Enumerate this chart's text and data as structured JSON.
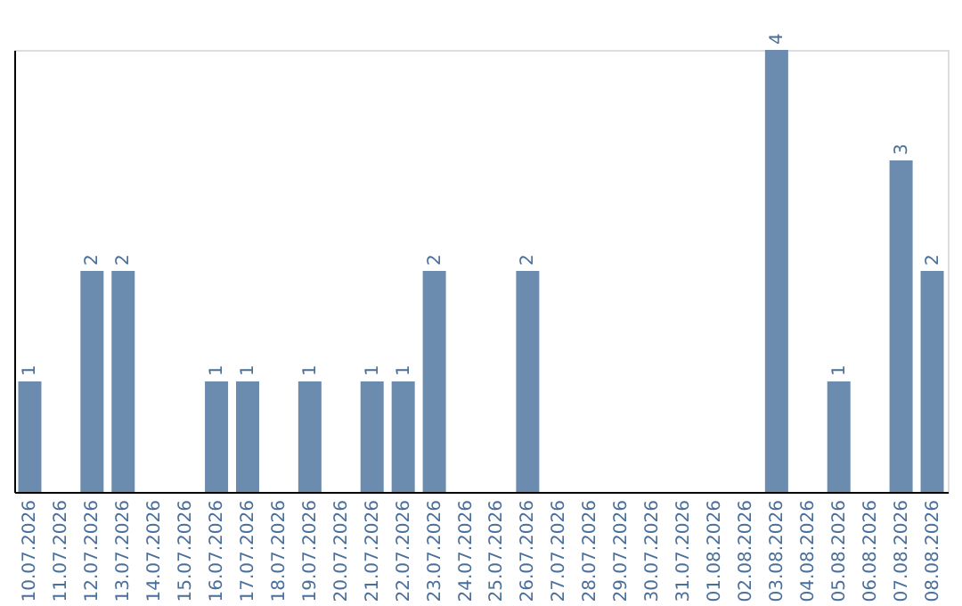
{
  "chart_data": {
    "type": "bar",
    "categories": [
      "10.07.2026",
      "11.07.2026",
      "12.07.2026",
      "13.07.2026",
      "14.07.2026",
      "15.07.2026",
      "16.07.2026",
      "17.07.2026",
      "18.07.2026",
      "19.07.2026",
      "20.07.2026",
      "21.07.2026",
      "22.07.2026",
      "23.07.2026",
      "24.07.2026",
      "25.07.2026",
      "26.07.2026",
      "27.07.2026",
      "28.07.2026",
      "29.07.2026",
      "30.07.2026",
      "31.07.2026",
      "01.08.2026",
      "02.08.2026",
      "03.08.2026",
      "04.08.2026",
      "05.08.2026",
      "06.08.2026",
      "07.08.2026",
      "08.08.2026"
    ],
    "values": [
      1,
      0,
      2,
      2,
      0,
      0,
      1,
      1,
      0,
      1,
      0,
      1,
      1,
      2,
      0,
      0,
      2,
      0,
      0,
      0,
      0,
      0,
      0,
      0,
      4,
      0,
      1,
      0,
      3,
      2
    ],
    "value_labels": [
      "1",
      null,
      "2",
      "2",
      null,
      null,
      "1",
      "1",
      null,
      "1",
      null,
      "1",
      "1",
      "2",
      null,
      null,
      "2",
      null,
      null,
      null,
      null,
      null,
      null,
      null,
      "4",
      null,
      "1",
      null,
      "3",
      "2"
    ],
    "color": "#6b8cae",
    "tick_labels": "x",
    "grid": false
  }
}
